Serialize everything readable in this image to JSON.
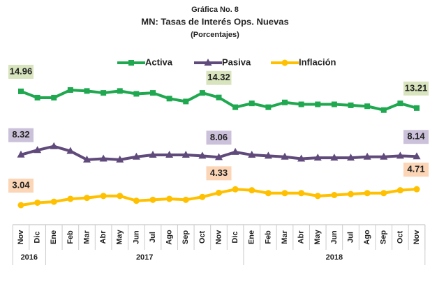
{
  "chart_data": {
    "type": "line",
    "title": "Gráfica No. 8",
    "subtitle": "MN: Tasas de Interés Ops. Nuevas",
    "note": "(Porcentajes)",
    "categories": [
      "Nov",
      "Dic",
      "Ene",
      "Feb",
      "Mar",
      "Abr",
      "May",
      "Jun",
      "Jul",
      "Ago",
      "Sep",
      "Oct",
      "Nov",
      "Dic",
      "Ene",
      "Feb",
      "Mar",
      "Abr",
      "May",
      "Jun",
      "Jul",
      "Ago",
      "Sep",
      "Oct",
      "Nov"
    ],
    "groups": [
      {
        "label": "2016",
        "span": 2
      },
      {
        "label": "2017",
        "span": 12
      },
      {
        "label": "2018",
        "span": 11
      }
    ],
    "labeled_points": [
      0,
      12,
      24
    ],
    "series": [
      {
        "name": "Activa",
        "color": "#1fa84f",
        "label_color": "#d7e4bd",
        "marker": "square",
        "values": [
          14.96,
          14.3,
          14.3,
          15.1,
          15.0,
          14.8,
          15.0,
          14.7,
          14.8,
          14.2,
          13.9,
          14.8,
          14.32,
          13.3,
          13.7,
          13.3,
          13.8,
          13.6,
          13.6,
          13.6,
          13.5,
          13.4,
          13.0,
          13.7,
          13.21
        ]
      },
      {
        "name": "Pasiva",
        "color": "#604a7b",
        "label_color": "#ccc1da",
        "marker": "triangle",
        "values": [
          8.32,
          8.8,
          9.2,
          8.7,
          7.8,
          7.9,
          7.8,
          8.1,
          8.3,
          8.3,
          8.3,
          8.2,
          8.06,
          8.6,
          8.3,
          8.2,
          8.1,
          7.9,
          8.0,
          8.0,
          8.0,
          8.1,
          8.1,
          8.2,
          8.14
        ]
      },
      {
        "name": "Inflación",
        "color": "#ffc000",
        "label_color": "#fbd5b5",
        "marker": "circle",
        "values": [
          3.04,
          3.3,
          3.4,
          3.7,
          3.8,
          4.0,
          4.0,
          3.5,
          3.6,
          3.7,
          3.6,
          3.9,
          4.33,
          4.7,
          4.6,
          4.3,
          4.3,
          4.3,
          4.0,
          4.1,
          4.2,
          4.3,
          4.3,
          4.6,
          4.71
        ]
      }
    ]
  }
}
